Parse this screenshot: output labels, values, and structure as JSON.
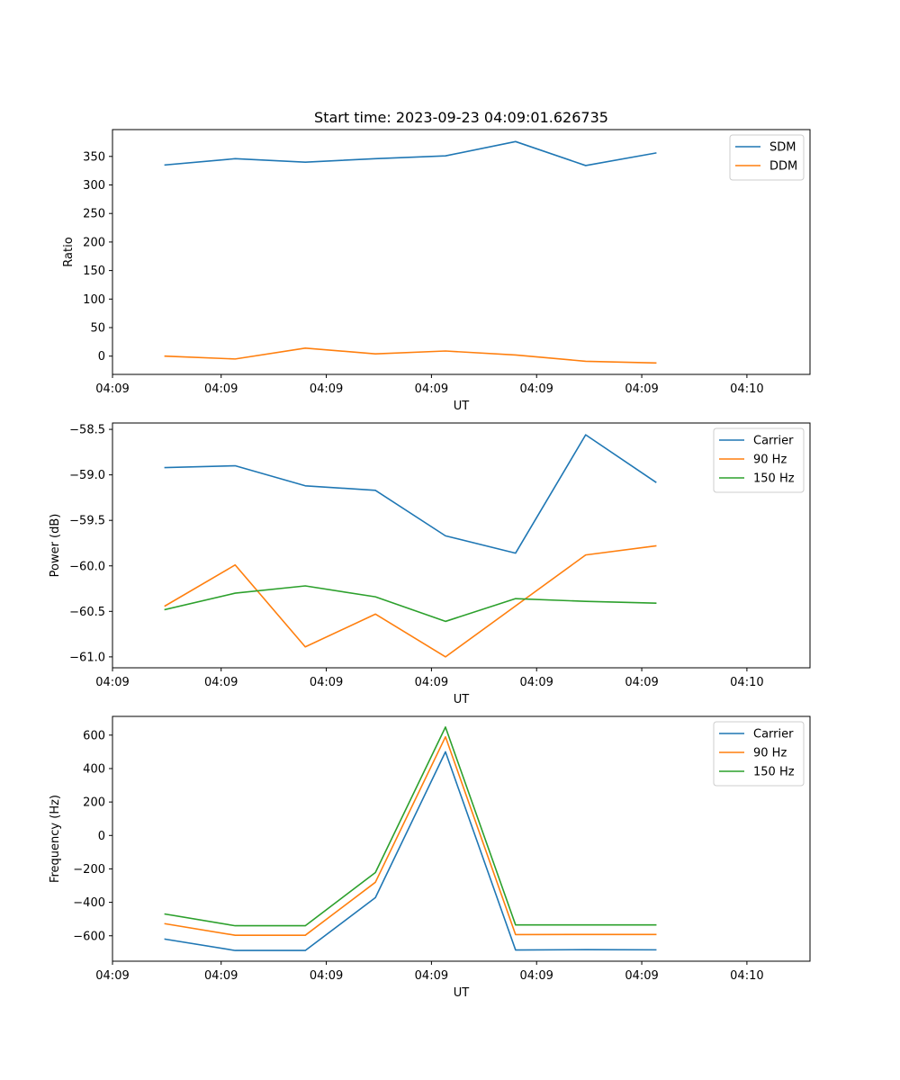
{
  "figure": {
    "title": "Start time: 2023-09-23 04:09:01.626735"
  },
  "chart_data": [
    {
      "type": "line",
      "title": "Start time: 2023-09-23 04:09:01.626735",
      "xlabel": "UT",
      "ylabel": "Ratio",
      "x": [
        0,
        1,
        2,
        3,
        4,
        5,
        6,
        7
      ],
      "xlim": [
        -0.75,
        9.2
      ],
      "x_ticks": [
        -0.75,
        0.8,
        2.3,
        3.8,
        5.3,
        6.8,
        8.3
      ],
      "x_tick_labels": [
        "04:09",
        "04:09",
        "04:09",
        "04:09",
        "04:09",
        "04:09",
        "04:10"
      ],
      "ylim": [
        -32,
        397
      ],
      "y_ticks": [
        0,
        50,
        100,
        150,
        200,
        250,
        300,
        350
      ],
      "y_tick_labels": [
        "0",
        "50",
        "100",
        "150",
        "200",
        "250",
        "300",
        "350"
      ],
      "legend_position": "top-right",
      "series": [
        {
          "name": "SDM",
          "color": "#1f77b4",
          "values": [
            335,
            346,
            340,
            346,
            351,
            376,
            334,
            356
          ]
        },
        {
          "name": "DDM",
          "color": "#ff7f0e",
          "values": [
            0,
            -5,
            14,
            4,
            9,
            2,
            -9,
            -12
          ]
        }
      ]
    },
    {
      "type": "line",
      "title": "",
      "xlabel": "UT",
      "ylabel": "Power (dB)",
      "x": [
        0,
        1,
        2,
        3,
        4,
        5,
        6,
        7
      ],
      "xlim": [
        -0.75,
        9.2
      ],
      "x_ticks": [
        -0.75,
        0.8,
        2.3,
        3.8,
        5.3,
        6.8,
        8.3
      ],
      "x_tick_labels": [
        "04:09",
        "04:09",
        "04:09",
        "04:09",
        "04:09",
        "04:09",
        "04:10"
      ],
      "ylim": [
        -61.12,
        -58.43
      ],
      "y_ticks": [
        -61.0,
        -60.5,
        -60.0,
        -59.5,
        -59.0,
        -58.5
      ],
      "y_tick_labels": [
        "−61.0",
        "−60.5",
        "−60.0",
        "−59.5",
        "−59.0",
        "−58.5"
      ],
      "legend_position": "top-right",
      "series": [
        {
          "name": "Carrier",
          "color": "#1f77b4",
          "values": [
            -58.92,
            -58.9,
            -59.12,
            -59.17,
            -59.67,
            -59.86,
            -58.56,
            -59.08
          ]
        },
        {
          "name": "90 Hz",
          "color": "#ff7f0e",
          "values": [
            -60.44,
            -59.99,
            -60.89,
            -60.53,
            -61.0,
            -60.44,
            -59.88,
            -59.78
          ]
        },
        {
          "name": "150 Hz",
          "color": "#2ca02c",
          "values": [
            -60.48,
            -60.3,
            -60.22,
            -60.34,
            -60.61,
            -60.36,
            -60.39,
            -60.41
          ]
        }
      ]
    },
    {
      "type": "line",
      "title": "",
      "xlabel": "UT",
      "ylabel": "Frequency (Hz)",
      "x": [
        0,
        1,
        2,
        3,
        4,
        5,
        6,
        7
      ],
      "xlim": [
        -0.75,
        9.2
      ],
      "x_ticks": [
        -0.75,
        0.8,
        2.3,
        3.8,
        5.3,
        6.8,
        8.3
      ],
      "x_tick_labels": [
        "04:09",
        "04:09",
        "04:09",
        "04:09",
        "04:09",
        "04:09",
        "04:10"
      ],
      "ylim": [
        -752,
        712
      ],
      "y_ticks": [
        -600,
        -400,
        -200,
        0,
        200,
        400,
        600
      ],
      "y_tick_labels": [
        "−600",
        "−400",
        "−200",
        "0",
        "200",
        "400",
        "600"
      ],
      "legend_position": "top-right",
      "series": [
        {
          "name": "Carrier",
          "color": "#1f77b4",
          "values": [
            -620,
            -688,
            -688,
            -372,
            500,
            -685,
            -683,
            -684
          ]
        },
        {
          "name": "90 Hz",
          "color": "#ff7f0e",
          "values": [
            -528,
            -597,
            -597,
            -280,
            590,
            -593,
            -592,
            -592
          ]
        },
        {
          "name": "150 Hz",
          "color": "#2ca02c",
          "values": [
            -470,
            -540,
            -540,
            -222,
            648,
            -535,
            -535,
            -535
          ]
        }
      ]
    }
  ]
}
